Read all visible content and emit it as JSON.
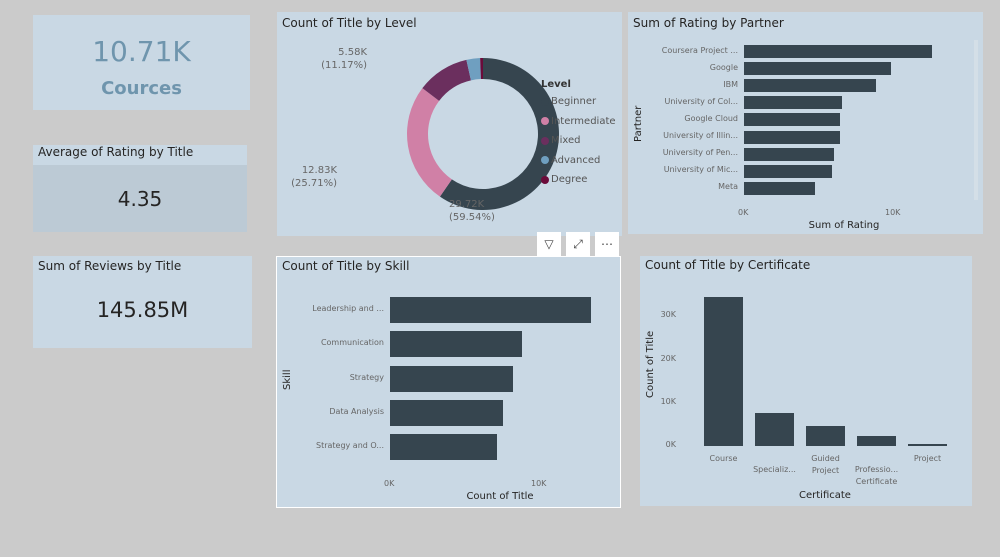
{
  "colors": {
    "bar": "#36454f",
    "panel": "#c9d8e4",
    "accent": "#6f95ad"
  },
  "kpi_courses": {
    "value": "10.71K",
    "label": "Cources"
  },
  "kpi_rating": {
    "title": "Average of Rating by Title",
    "value": "4.35"
  },
  "kpi_reviews": {
    "title": "Sum of Reviews by Title",
    "value": "145.85M"
  },
  "toolbar": {
    "filter_icon": "filter-icon",
    "focus_icon": "focus-mode-icon",
    "more": "⋯"
  },
  "chart_data": [
    {
      "type": "pie",
      "title": "Count of Title by Level",
      "legend_title": "Level",
      "legend_position": "right",
      "categories": [
        "Beginner",
        "Intermediate",
        "Mixed",
        "Advanced",
        "Degree"
      ],
      "values": [
        29720,
        12830,
        5580,
        1450,
        300
      ],
      "colors": [
        "#36454f",
        "#d080a6",
        "#6b2f5e",
        "#6f9fc0",
        "#6b0b3a"
      ],
      "labels": [
        {
          "value": "29.72K",
          "pct": "(59.54%)"
        },
        {
          "value": "12.83K",
          "pct": "(25.71%)"
        },
        {
          "value": "5.58K",
          "pct": "(11.17%)"
        }
      ]
    },
    {
      "type": "bar",
      "orientation": "horizontal",
      "title": "Sum of Rating by Partner",
      "xlabel": "Sum of Rating",
      "ylabel": "Partner",
      "categories": [
        "Coursera Project ...",
        "Google",
        "IBM",
        "University of Col...",
        "Google Cloud",
        "University of Illin...",
        "University of Pen...",
        "University of Mic...",
        "Meta"
      ],
      "values": [
        12800,
        10000,
        9000,
        6700,
        6500,
        6500,
        6100,
        6000,
        4800
      ],
      "ticks": [
        "0K",
        "10K"
      ],
      "xlim": [
        0,
        14000
      ]
    },
    {
      "type": "bar",
      "orientation": "horizontal",
      "title": "Count of Title by Skill",
      "xlabel": "Count of Title",
      "ylabel": "Skill",
      "categories": [
        "Leadership and ...",
        "Communication",
        "Strategy",
        "Data Analysis",
        "Strategy and O..."
      ],
      "values": [
        13700,
        9000,
        8400,
        7700,
        7300
      ],
      "ticks": [
        "0K",
        "10K"
      ],
      "xlim": [
        0,
        15000
      ]
    },
    {
      "type": "bar",
      "orientation": "vertical",
      "title": "Count of Title by Certificate",
      "xlabel": "Certificate",
      "ylabel": "Count of Title",
      "categories": [
        "Course",
        "Specializ...",
        "Guided Project",
        "Professio... Certificate",
        "Project"
      ],
      "values": [
        34500,
        7700,
        4600,
        2200,
        400
      ],
      "ticks": [
        "0K",
        "10K",
        "20K",
        "30K"
      ],
      "ylim": [
        0,
        37000
      ]
    }
  ]
}
